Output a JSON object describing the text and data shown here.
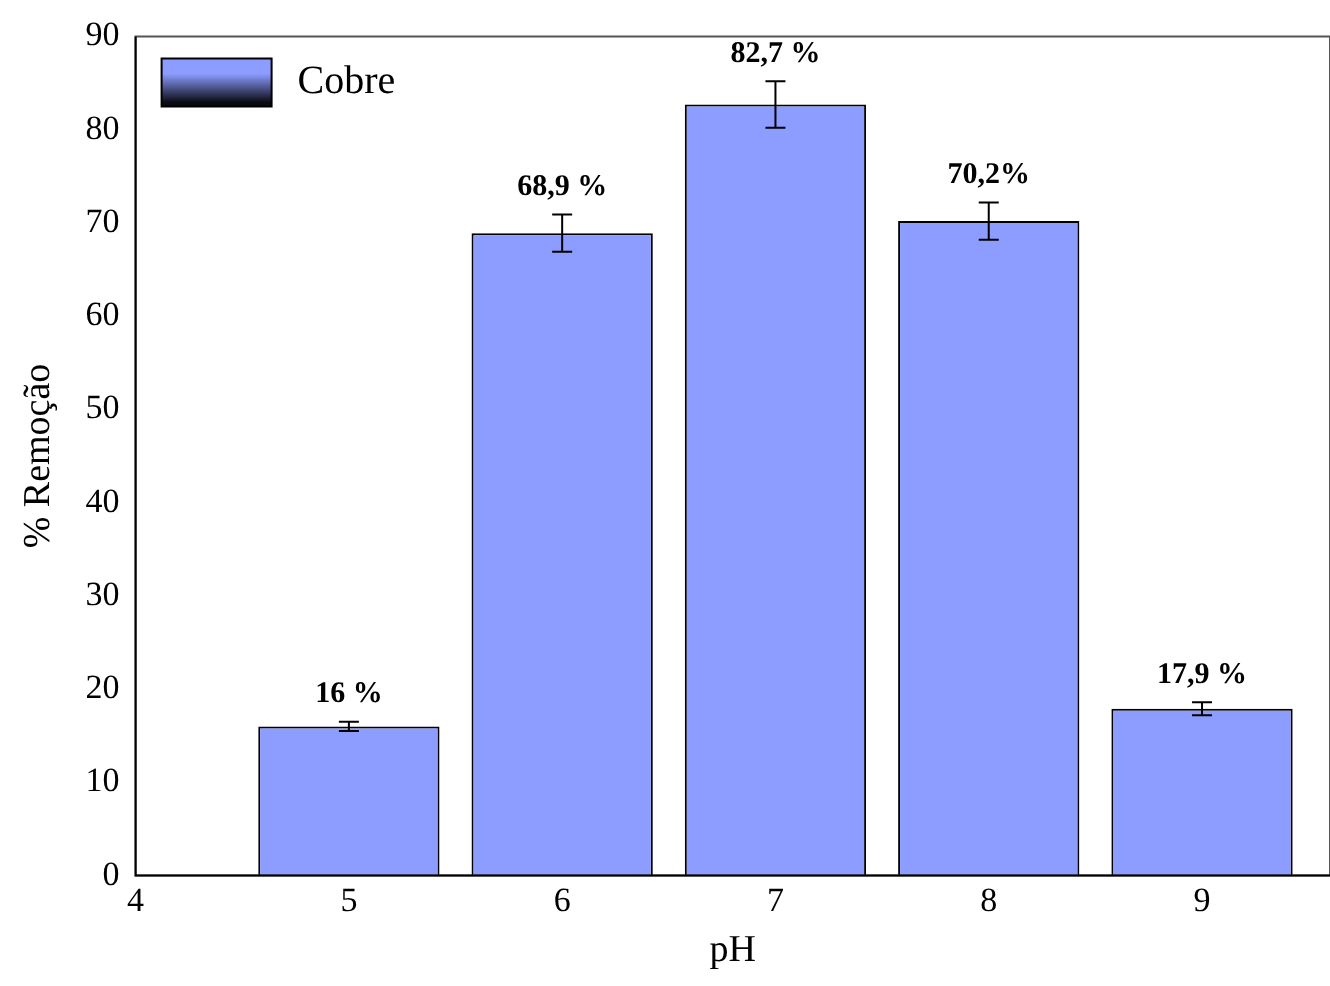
{
  "chart_data": {
    "type": "bar",
    "xlabel": "pH",
    "ylabel": "% Remoção",
    "x": [
      5,
      6,
      7,
      8,
      9
    ],
    "series": [
      {
        "name": "Cobre",
        "color": "#8c9cff",
        "values": [
          16,
          68.9,
          82.7,
          70.2,
          17.9
        ],
        "errors": [
          0.5,
          2,
          2.5,
          2,
          0.7
        ],
        "value_labels": [
          "16 %",
          "68,9 %",
          "82,7 %",
          "70,2%",
          "17,9 %"
        ]
      }
    ],
    "xlim": [
      4,
      9.6
    ],
    "xticks": [
      4,
      5,
      6,
      7,
      8,
      9
    ],
    "ylim": [
      0,
      90
    ],
    "yticks": [
      0,
      10,
      20,
      30,
      40,
      50,
      60,
      70,
      80,
      90
    ],
    "grid": false,
    "legend": "top left"
  }
}
